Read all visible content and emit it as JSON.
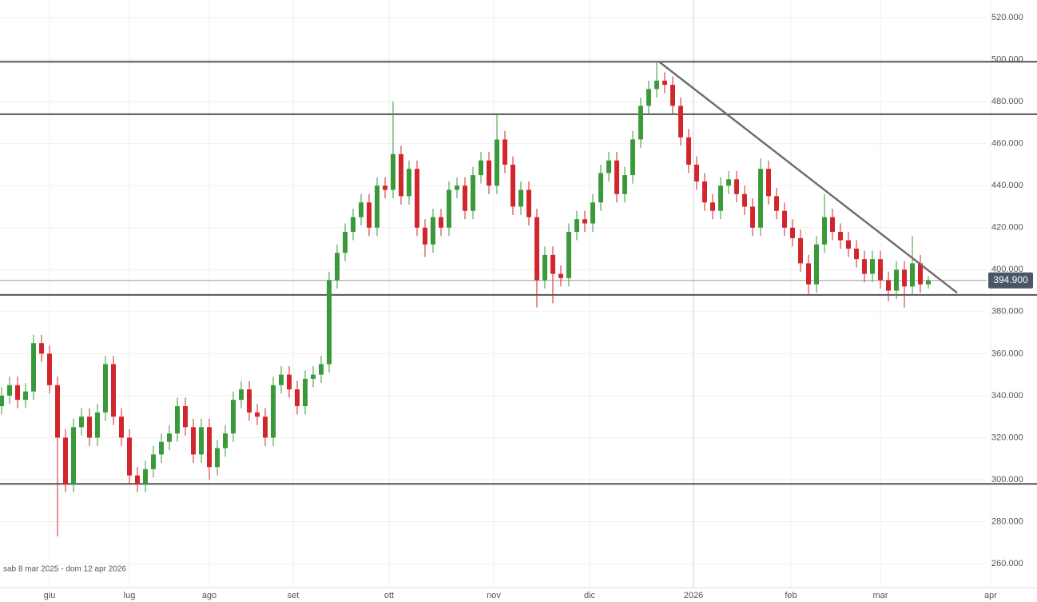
{
  "chart_data": {
    "type": "candlestick",
    "range_label": "sab 8 mar 2025 - dom 12 apr 2026",
    "open": [
      335000,
      340000,
      345000,
      338000,
      342000,
      365000,
      360000,
      345000,
      320000,
      298000,
      325000,
      330000,
      320000,
      332000,
      355000,
      330000,
      320000,
      302000,
      298000,
      305000,
      312000,
      318000,
      322000,
      335000,
      325000,
      312000,
      325000,
      306000,
      315000,
      322000,
      338000,
      343000,
      332000,
      330000,
      320000,
      345000,
      350000,
      343000,
      335000,
      348000,
      350000,
      355000,
      395000,
      408000,
      418000,
      425000,
      432000,
      420000,
      440000,
      438000,
      455000,
      435000,
      448000,
      420000,
      412000,
      425000,
      420000,
      438000,
      440000,
      428000,
      445000,
      452000,
      440000,
      462000,
      450000,
      430000,
      438000,
      425000,
      395000,
      407000,
      398000,
      396000,
      418000,
      424000,
      422000,
      432000,
      446000,
      452000,
      436000,
      445000,
      462000,
      478000,
      486000,
      490000,
      488000,
      478000,
      463000,
      450000,
      442000,
      432000,
      428000,
      440000,
      443000,
      436000,
      430000,
      420000,
      448000,
      435000,
      428000,
      420000,
      415000,
      403000,
      393000,
      412000,
      425000,
      418000,
      414000,
      410000,
      405000,
      398000,
      405000,
      395000,
      390000,
      400000,
      392000,
      403000,
      393000
    ],
    "high": [
      344000,
      349000,
      349000,
      346000,
      369000,
      369000,
      364000,
      349000,
      324000,
      329000,
      334000,
      334000,
      336000,
      359000,
      359000,
      334000,
      324000,
      306000,
      309000,
      316000,
      322000,
      326000,
      339000,
      339000,
      329000,
      329000,
      329000,
      319000,
      326000,
      342000,
      347000,
      347000,
      336000,
      334000,
      349000,
      354000,
      354000,
      347000,
      352000,
      354000,
      359000,
      399000,
      412000,
      422000,
      429000,
      436000,
      436000,
      444000,
      444000,
      480000,
      459000,
      452000,
      452000,
      424000,
      429000,
      429000,
      442000,
      444000,
      444000,
      449000,
      456000,
      456000,
      474000,
      466000,
      454000,
      442000,
      442000,
      429000,
      411000,
      411000,
      402000,
      422000,
      428000,
      428000,
      436000,
      450000,
      456000,
      456000,
      449000,
      466000,
      482000,
      490000,
      499000,
      494000,
      492000,
      482000,
      467000,
      454000,
      446000,
      436000,
      444000,
      447000,
      447000,
      440000,
      434000,
      453000,
      452000,
      439000,
      432000,
      424000,
      419000,
      407000,
      416000,
      436000,
      429000,
      422000,
      418000,
      414000,
      409000,
      409000,
      409000,
      399000,
      404000,
      404000,
      416000,
      407000,
      397000
    ],
    "low": [
      331000,
      336000,
      334000,
      334000,
      338000,
      356000,
      341000,
      273000,
      294000,
      294000,
      321000,
      316000,
      316000,
      328000,
      326000,
      316000,
      298000,
      294000,
      294000,
      301000,
      308000,
      314000,
      318000,
      321000,
      308000,
      308000,
      300000,
      302000,
      311000,
      318000,
      334000,
      328000,
      326000,
      316000,
      316000,
      341000,
      339000,
      331000,
      331000,
      344000,
      346000,
      351000,
      391000,
      404000,
      414000,
      421000,
      416000,
      416000,
      434000,
      434000,
      431000,
      431000,
      416000,
      406000,
      408000,
      416000,
      416000,
      434000,
      424000,
      424000,
      441000,
      436000,
      436000,
      446000,
      426000,
      426000,
      421000,
      382000,
      391000,
      384000,
      392000,
      392000,
      414000,
      418000,
      418000,
      428000,
      442000,
      432000,
      432000,
      441000,
      458000,
      474000,
      482000,
      484000,
      474000,
      459000,
      446000,
      438000,
      428000,
      424000,
      424000,
      436000,
      432000,
      426000,
      416000,
      416000,
      431000,
      424000,
      416000,
      411000,
      399000,
      388000,
      389000,
      408000,
      414000,
      410000,
      406000,
      401000,
      394000,
      394000,
      391000,
      385000,
      386000,
      382000,
      388000,
      389000,
      391000
    ],
    "close": [
      340000,
      345000,
      338000,
      342000,
      365000,
      360000,
      345000,
      320000,
      298000,
      325000,
      330000,
      320000,
      332000,
      355000,
      330000,
      320000,
      302000,
      298000,
      305000,
      312000,
      318000,
      322000,
      335000,
      325000,
      312000,
      325000,
      306000,
      315000,
      322000,
      338000,
      343000,
      332000,
      330000,
      320000,
      345000,
      350000,
      343000,
      335000,
      348000,
      350000,
      355000,
      395000,
      408000,
      418000,
      425000,
      432000,
      420000,
      440000,
      438000,
      455000,
      435000,
      448000,
      420000,
      412000,
      425000,
      420000,
      438000,
      440000,
      428000,
      445000,
      452000,
      440000,
      462000,
      450000,
      430000,
      438000,
      425000,
      395000,
      407000,
      398000,
      396000,
      418000,
      424000,
      422000,
      432000,
      446000,
      452000,
      436000,
      445000,
      462000,
      478000,
      486000,
      490000,
      488000,
      478000,
      463000,
      450000,
      442000,
      432000,
      428000,
      440000,
      443000,
      436000,
      430000,
      420000,
      448000,
      435000,
      428000,
      420000,
      415000,
      403000,
      393000,
      412000,
      425000,
      418000,
      414000,
      410000,
      405000,
      398000,
      405000,
      395000,
      390000,
      400000,
      392000,
      403000,
      393000,
      394900
    ],
    "up_color": "#3a9a3a",
    "down_color": "#d1262b",
    "xlim": [
      -0.2,
      129.6
    ],
    "xticks": [
      {
        "value": 6,
        "label": "giu"
      },
      {
        "value": 16,
        "label": "lug"
      },
      {
        "value": 26,
        "label": "ago"
      },
      {
        "value": 36.5,
        "label": "set"
      },
      {
        "value": 48.5,
        "label": "ott"
      },
      {
        "value": 61.6,
        "label": "nov"
      },
      {
        "value": 73.6,
        "label": "dic"
      },
      {
        "value": 86.6,
        "label": "2026"
      },
      {
        "value": 98.8,
        "label": "feb"
      },
      {
        "value": 110,
        "label": "mar"
      },
      {
        "value": 123.8,
        "label": "apr"
      }
    ],
    "ylim": [
      248600,
      528400
    ],
    "yticks": [
      {
        "value": 260000,
        "label": "260.000"
      },
      {
        "value": 280000,
        "label": "280.000"
      },
      {
        "value": 300000,
        "label": "300.000"
      },
      {
        "value": 320000,
        "label": "320.000"
      },
      {
        "value": 340000,
        "label": "340.000"
      },
      {
        "value": 360000,
        "label": "360.000"
      },
      {
        "value": 380000,
        "label": "380.000"
      },
      {
        "value": 400000,
        "label": "400.000"
      },
      {
        "value": 420000,
        "label": "420.000"
      },
      {
        "value": 440000,
        "label": "440.000"
      },
      {
        "value": 460000,
        "label": "460.000"
      },
      {
        "value": 480000,
        "label": "480.000"
      },
      {
        "value": 500000,
        "label": "500.000"
      },
      {
        "value": 520000,
        "label": "520.000"
      }
    ],
    "grid": true,
    "levels": [
      499000,
      474000,
      388000,
      298000
    ],
    "level_color": "#555555",
    "trendline": {
      "x": [
        82.3,
        119.6
      ],
      "y": [
        499000,
        389000
      ]
    },
    "last": {
      "value": 394900,
      "label": "394.900"
    }
  }
}
